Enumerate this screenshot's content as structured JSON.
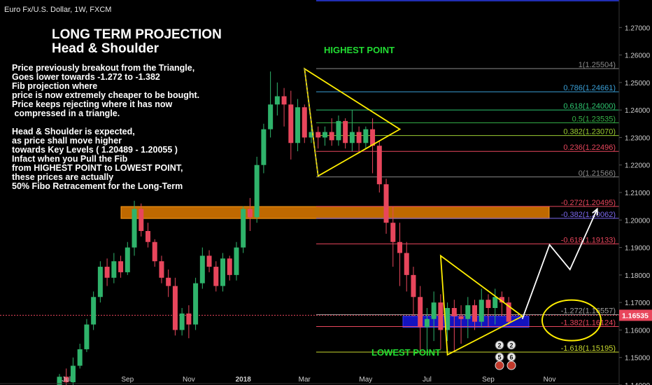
{
  "header": "Euro Fx/U.S. Dollar, 1W, FXCM",
  "annotations": {
    "title_line1": "LONG TERM PROJECTION",
    "title_line2": "Head & Shoulder",
    "note": "Price previously breakout from the Triangle,\nGoes lower towards -1.272 to -1.382\nFib projection where\nprice is now extremely cheaper to be bought.\nPrice keeps rejecting where it has now\n compressed in a triangle.\n\nHead & Shoulder is expected,\nas price shall move higher\ntowards Key Levels ( 1.20489 - 1.20055 )\nInfact when you Pull the Fib\nfrom HIGHEST POINT to LOWEST POINT,\nthese prices are actually\n50% Fibo Retracement for the Long-Term",
    "highest": "HIGHEST POINT",
    "lowest": "LOWEST POINT"
  },
  "colors": {
    "up": "#2fb36b",
    "down": "#e8465c",
    "triangle": "#ffee00",
    "zone": "#ff8c00",
    "blue_zone": "#1a1aff",
    "arrow": "#ffffff",
    "price_tag": "#e8465c"
  },
  "chart_data": {
    "type": "candlestick",
    "ylim": [
      1.14,
      1.28
    ],
    "y_ticks": [
      "1.14000",
      "1.15000",
      "1.16000",
      "1.17000",
      "1.18000",
      "1.19000",
      "1.20000",
      "1.21000",
      "1.22000",
      "1.23000",
      "1.24000",
      "1.25000",
      "1.26000",
      "1.27000"
    ],
    "x_ticks": [
      {
        "label": "Jul",
        "week": 1
      },
      {
        "label": "Sep",
        "week": 10
      },
      {
        "label": "Nov",
        "week": 19
      },
      {
        "label": "2018",
        "week": 27
      },
      {
        "label": "Mar",
        "week": 36
      },
      {
        "label": "May",
        "week": 45
      },
      {
        "label": "Jul",
        "week": 54
      },
      {
        "label": "Sep",
        "week": 63
      },
      {
        "label": "Nov",
        "week": 72
      }
    ],
    "last_price": "1.16535",
    "candles": [
      [
        1.139,
        1.143,
        1.138,
        1.144
      ],
      [
        1.143,
        1.141,
        1.139,
        1.146
      ],
      [
        1.141,
        1.147,
        1.14,
        1.15
      ],
      [
        1.147,
        1.153,
        1.146,
        1.155
      ],
      [
        1.153,
        1.162,
        1.152,
        1.164
      ],
      [
        1.162,
        1.172,
        1.16,
        1.174
      ],
      [
        1.172,
        1.183,
        1.17,
        1.185
      ],
      [
        1.183,
        1.179,
        1.176,
        1.186
      ],
      [
        1.179,
        1.185,
        1.177,
        1.188
      ],
      [
        1.185,
        1.181,
        1.179,
        1.187
      ],
      [
        1.181,
        1.19,
        1.18,
        1.192
      ],
      [
        1.19,
        1.204,
        1.187,
        1.207
      ],
      [
        1.204,
        1.196,
        1.194,
        1.206
      ],
      [
        1.196,
        1.192,
        1.19,
        1.199
      ],
      [
        1.192,
        1.185,
        1.183,
        1.193
      ],
      [
        1.185,
        1.179,
        1.177,
        1.187
      ],
      [
        1.179,
        1.176,
        1.172,
        1.182
      ],
      [
        1.176,
        1.16,
        1.158,
        1.179
      ],
      [
        1.16,
        1.166,
        1.158,
        1.168
      ],
      [
        1.166,
        1.162,
        1.157,
        1.169
      ],
      [
        1.162,
        1.177,
        1.16,
        1.179
      ],
      [
        1.177,
        1.187,
        1.175,
        1.19
      ],
      [
        1.187,
        1.183,
        1.181,
        1.189
      ],
      [
        1.183,
        1.176,
        1.174,
        1.185
      ],
      [
        1.176,
        1.186,
        1.174,
        1.188
      ],
      [
        1.186,
        1.18,
        1.178,
        1.187
      ],
      [
        1.18,
        1.19,
        1.178,
        1.192
      ],
      [
        1.19,
        1.204,
        1.188,
        1.205
      ],
      [
        1.204,
        1.201,
        1.196,
        1.208
      ],
      [
        1.201,
        1.22,
        1.199,
        1.223
      ],
      [
        1.22,
        1.233,
        1.217,
        1.235
      ],
      [
        1.233,
        1.242,
        1.23,
        1.254
      ],
      [
        1.242,
        1.245,
        1.238,
        1.25
      ],
      [
        1.245,
        1.242,
        1.234,
        1.248
      ],
      [
        1.242,
        1.228,
        1.222,
        1.247
      ],
      [
        1.228,
        1.241,
        1.225,
        1.244
      ],
      [
        1.241,
        1.23,
        1.228,
        1.242
      ],
      [
        1.23,
        1.232,
        1.228,
        1.235
      ],
      [
        1.232,
        1.23,
        1.226,
        1.234
      ],
      [
        1.23,
        1.232,
        1.227,
        1.234
      ],
      [
        1.232,
        1.229,
        1.227,
        1.237
      ],
      [
        1.229,
        1.236,
        1.227,
        1.238
      ],
      [
        1.236,
        1.228,
        1.226,
        1.237
      ],
      [
        1.228,
        1.232,
        1.225,
        1.24
      ],
      [
        1.232,
        1.228,
        1.225,
        1.234
      ],
      [
        1.228,
        1.233,
        1.226,
        1.234
      ],
      [
        1.233,
        1.227,
        1.217,
        1.237
      ],
      [
        1.227,
        1.213,
        1.21,
        1.229
      ],
      [
        1.213,
        1.199,
        1.195,
        1.215
      ],
      [
        1.199,
        1.192,
        1.183,
        1.205
      ],
      [
        1.192,
        1.188,
        1.176,
        1.199
      ],
      [
        1.188,
        1.18,
        1.174,
        1.192
      ],
      [
        1.18,
        1.172,
        1.165,
        1.183
      ],
      [
        1.172,
        1.161,
        1.152,
        1.176
      ],
      [
        1.161,
        1.164,
        1.153,
        1.168
      ],
      [
        1.164,
        1.17,
        1.156,
        1.174
      ],
      [
        1.17,
        1.16,
        1.153,
        1.173
      ],
      [
        1.16,
        1.168,
        1.156,
        1.17
      ],
      [
        1.168,
        1.165,
        1.152,
        1.171
      ],
      [
        1.165,
        1.164,
        1.155,
        1.169
      ],
      [
        1.164,
        1.169,
        1.157,
        1.172
      ],
      [
        1.169,
        1.163,
        1.16,
        1.171
      ],
      [
        1.163,
        1.171,
        1.161,
        1.175
      ],
      [
        1.171,
        1.168,
        1.161,
        1.173
      ],
      [
        1.168,
        1.172,
        1.162,
        1.175
      ],
      [
        1.172,
        1.17,
        1.165,
        1.174
      ],
      [
        1.17,
        1.163,
        1.162,
        1.172
      ]
    ],
    "fib_levels": [
      {
        "label": "1(1.25504)",
        "value": 1.25504,
        "color": "#8a8a8a"
      },
      {
        "label": "0.786(1.24661)",
        "value": 1.24661,
        "color": "#3aa0d8"
      },
      {
        "label": "0.618(1.24000)",
        "value": 1.24,
        "color": "#2ec770"
      },
      {
        "label": "0.5(1.23535)",
        "value": 1.23535,
        "color": "#36b349"
      },
      {
        "label": "0.382(1.23070)",
        "value": 1.2307,
        "color": "#9acd32"
      },
      {
        "label": "0.236(1.22496)",
        "value": 1.22496,
        "color": "#e8465c"
      },
      {
        "label": "0(1.21566)",
        "value": 1.21566,
        "color": "#8a8a8a"
      },
      {
        "label": "-0.272(1.20495)",
        "value": 1.20495,
        "color": "#e8465c"
      },
      {
        "label": "-0.382(1.20062)",
        "value": 1.20062,
        "color": "#7b68ee"
      },
      {
        "label": "-0.618(1.19133)",
        "value": 1.19133,
        "color": "#e8465c"
      },
      {
        "label": "-1.272(1.16557)",
        "value": 1.16557,
        "color": "#9e9e9e"
      },
      {
        "label": "-1.382(1.16124)",
        "value": 1.16124,
        "color": "#e8465c"
      },
      {
        "label": "-1.618(1.15195)",
        "value": 1.15195,
        "color": "#c8d82e"
      }
    ],
    "key_zone": [
      1.20055,
      1.20489
    ],
    "buy_zone": [
      1.161,
      1.165
    ],
    "triangle_top": [
      [
        36,
        1.255
      ],
      [
        50,
        1.233
      ],
      [
        38,
        1.216
      ]
    ],
    "triangle_bottom": [
      [
        56,
        1.187
      ],
      [
        68,
        1.165
      ],
      [
        57,
        1.151
      ]
    ],
    "projection_path": [
      [
        68,
        1.164
      ],
      [
        72,
        1.191
      ],
      [
        75,
        1.182
      ],
      [
        79,
        1.204
      ]
    ]
  }
}
